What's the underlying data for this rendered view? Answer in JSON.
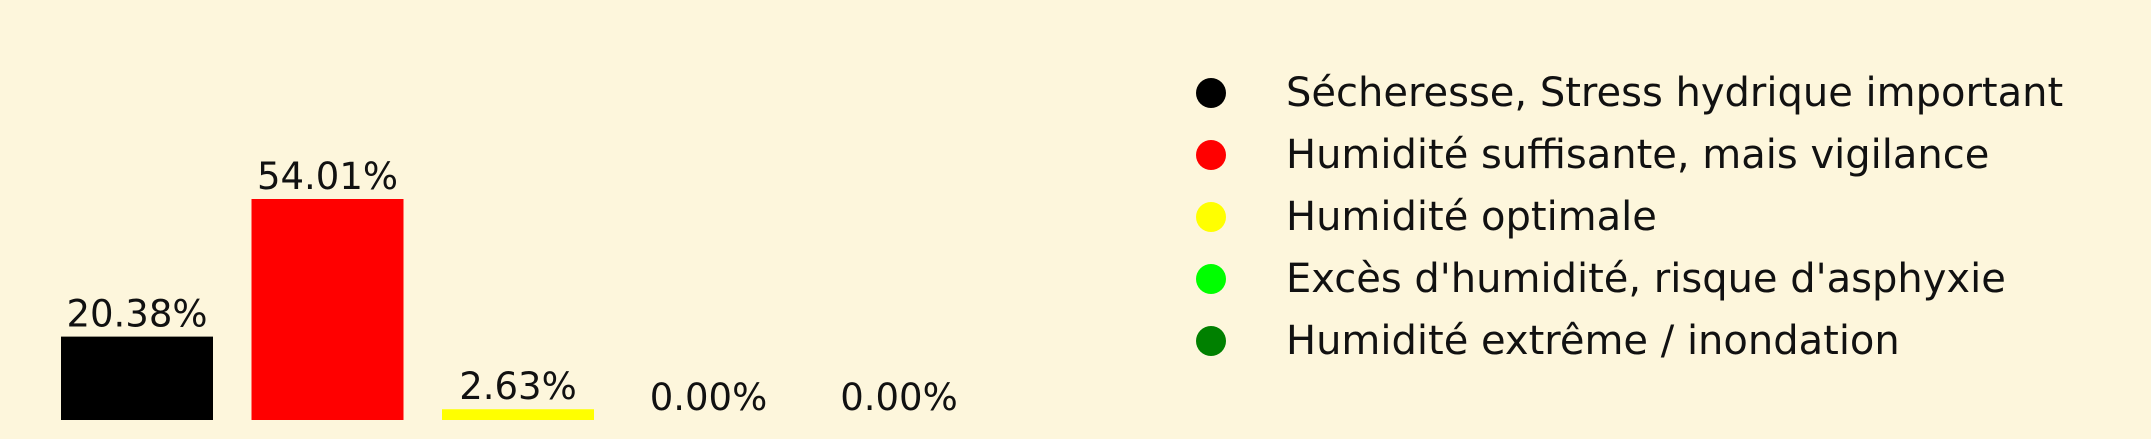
{
  "background_color": "#fdf6dc",
  "chart_data": {
    "type": "bar",
    "categories": [
      "Sécheresse, Stress hydrique important",
      "Humidité suffisante, mais vigilance",
      "Humidité optimale",
      "Excès d'humidité, risque d'asphyxie",
      "Humidité extrême / inondation"
    ],
    "values": [
      20.38,
      54.01,
      2.63,
      0.0,
      0.0
    ],
    "value_labels": [
      "20.38%",
      "54.01%",
      "2.63%",
      "0.00%",
      "0.00%"
    ],
    "colors": [
      "#000000",
      "#ff0000",
      "#ffff00",
      "#00ff00",
      "#008000"
    ],
    "unit": "%",
    "title": "",
    "xlabel": "",
    "ylabel": "",
    "ylim": [
      0,
      100
    ],
    "grid": false,
    "axes_visible": false,
    "legend_position": "right",
    "legend": [
      {
        "label": "Sécheresse, Stress hydrique important",
        "color": "#000000"
      },
      {
        "label": "Humidité suffisante, mais vigilance",
        "color": "#ff0000"
      },
      {
        "label": "Humidité optimale",
        "color": "#ffff00"
      },
      {
        "label": "Excès d'humidité, risque d'asphyxie",
        "color": "#00ff00"
      },
      {
        "label": "Humidité extrême / inondation",
        "color": "#008000"
      }
    ]
  }
}
